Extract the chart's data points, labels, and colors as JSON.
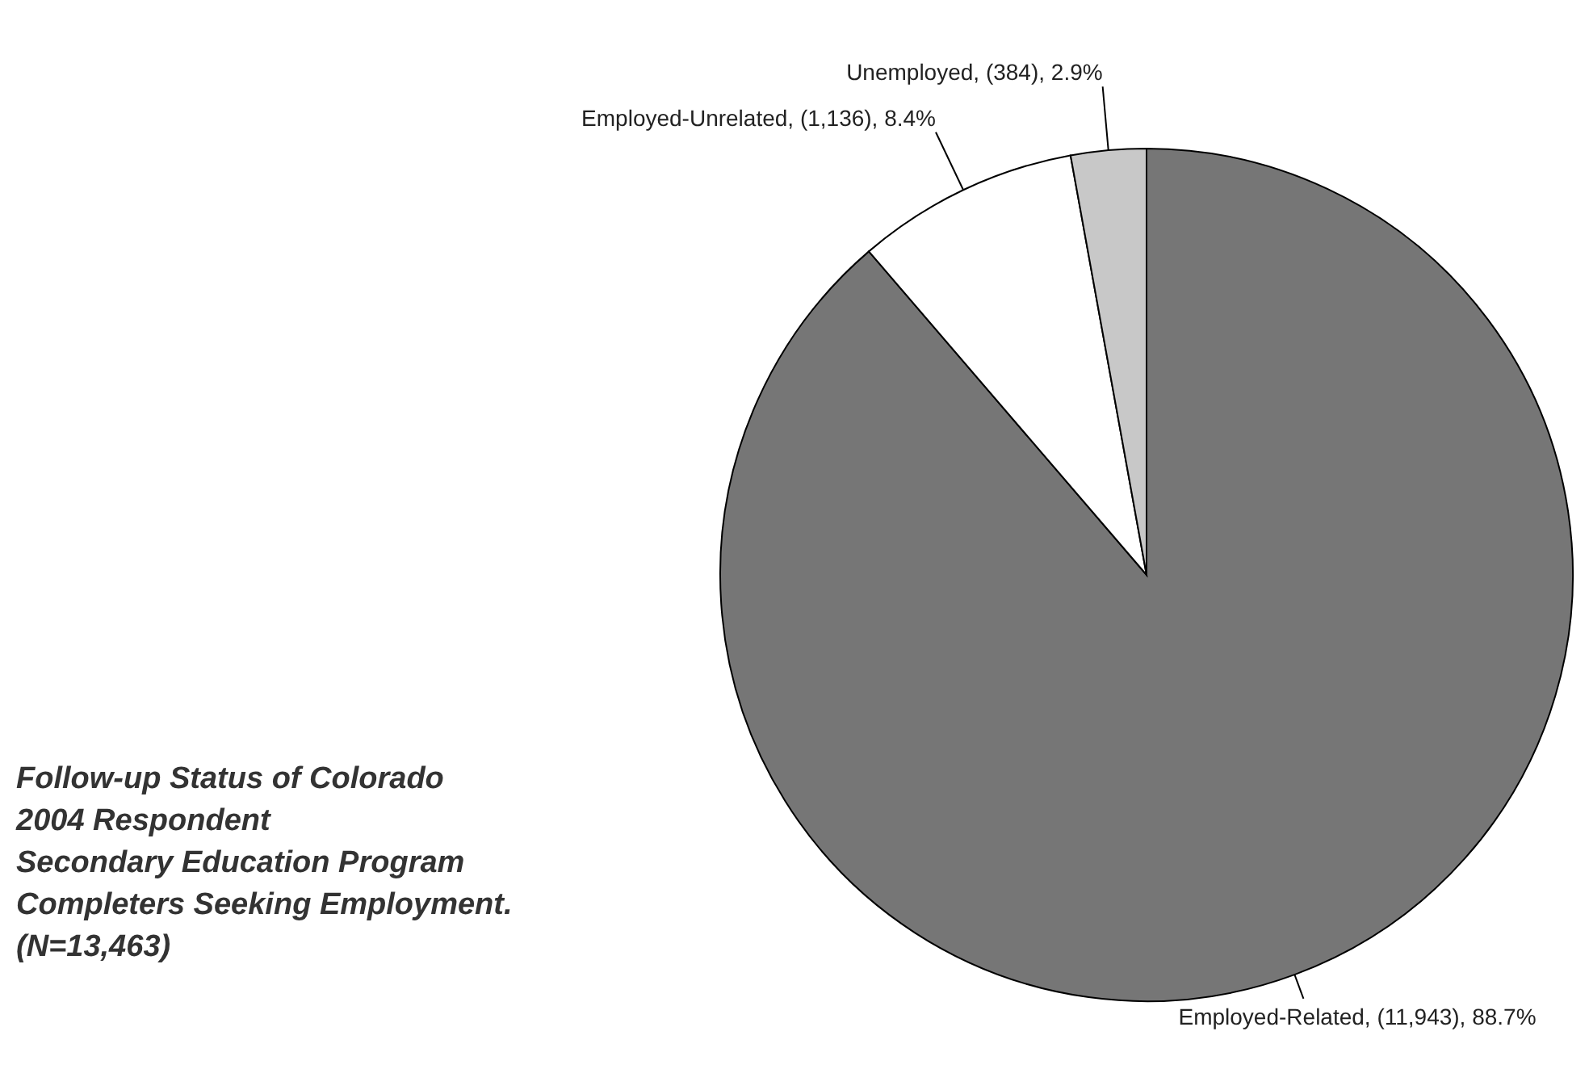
{
  "chart_data": {
    "type": "pie",
    "title": "Follow-up Status of Colorado\n2004 Respondent\nSecondary Education Program\nCompleters Seeking Employment.",
    "subtitle": "(N=13,463)",
    "categories": [
      "Employed-Related",
      "Employed-Unrelated",
      "Unemployed"
    ],
    "values": [
      11943,
      1136,
      384
    ],
    "colors": [
      "#767676",
      "#ffffff",
      "#c8c8c8"
    ],
    "value_labels": [
      "(11,943), 88.7%",
      "(1,136), 8.4%",
      "(384), 2.9%"
    ]
  }
}
